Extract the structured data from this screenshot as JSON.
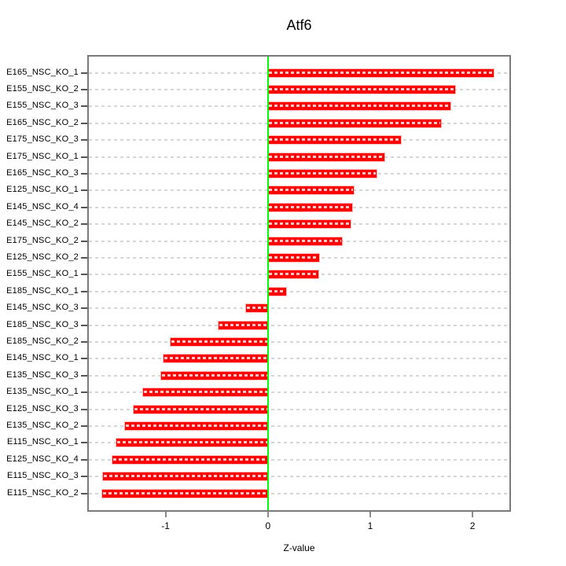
{
  "figure": {
    "title": "Atf6",
    "xlabel": "Z-value"
  },
  "chart_data": {
    "type": "bar",
    "orientation": "horizontal",
    "title": "Atf6",
    "xlabel": "Z-value",
    "ylabel": "",
    "legend": "none",
    "grid": "dashed horizontal line per category",
    "categories": [
      "E165_NSC_KO_1",
      "E155_NSC_KO_2",
      "E155_NSC_KO_3",
      "E165_NSC_KO_2",
      "E175_NSC_KO_3",
      "E175_NSC_KO_1",
      "E165_NSC_KO_3",
      "E125_NSC_KO_1",
      "E145_NSC_KO_4",
      "E145_NSC_KO_2",
      "E175_NSC_KO_2",
      "E125_NSC_KO_2",
      "E155_NSC_KO_1",
      "E185_NSC_KO_1",
      "E145_NSC_KO_3",
      "E185_NSC_KO_3",
      "E185_NSC_KO_2",
      "E145_NSC_KO_1",
      "E135_NSC_KO_3",
      "E135_NSC_KO_1",
      "E125_NSC_KO_3",
      "E135_NSC_KO_2",
      "E115_NSC_KO_1",
      "E125_NSC_KO_4",
      "E115_NSC_KO_3",
      "E115_NSC_KO_2"
    ],
    "values": [
      2.21,
      1.83,
      1.78,
      1.69,
      1.3,
      1.14,
      1.06,
      0.84,
      0.82,
      0.81,
      0.72,
      0.5,
      0.49,
      0.18,
      -0.21,
      -0.48,
      -0.95,
      -1.02,
      -1.04,
      -1.22,
      -1.31,
      -1.4,
      -1.48,
      -1.52,
      -1.61,
      -1.62
    ],
    "x_ticks": [
      -1,
      0,
      1,
      2
    ],
    "xlim": [
      -1.75,
      2.36
    ],
    "colors": {
      "bar": "#ff0000",
      "bar_dash": "#ffffff",
      "zero_line": "#00ff00",
      "grid": "#d6d6d6",
      "box_border": "#7a7a7a",
      "text": "#000000",
      "tick": "#8a8a8a"
    }
  }
}
